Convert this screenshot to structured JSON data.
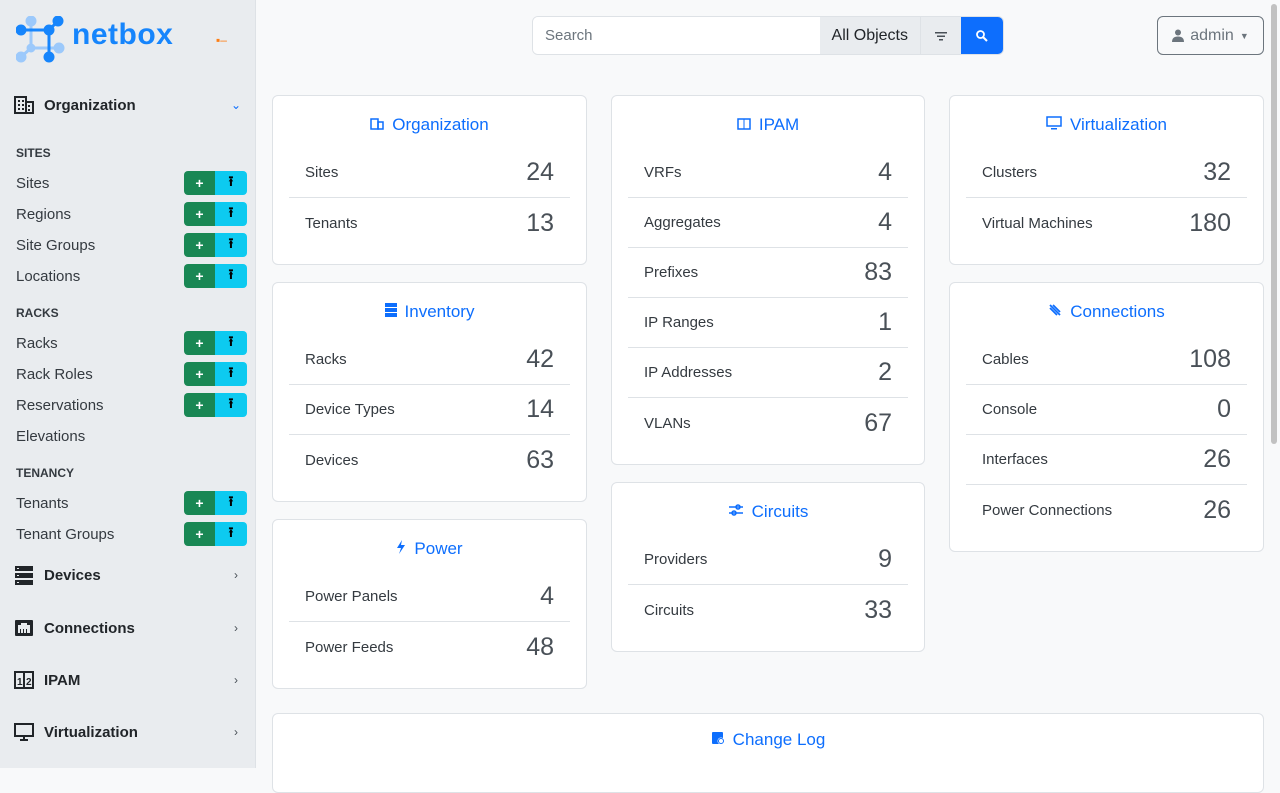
{
  "brand": {
    "name": "netbox"
  },
  "sidebar": {
    "groups": [
      {
        "label": "Organization",
        "icon": "office-building-icon",
        "expanded": true
      },
      {
        "label": "Devices",
        "icon": "server-icon"
      },
      {
        "label": "Connections",
        "icon": "ethernet-icon"
      },
      {
        "label": "IPAM",
        "icon": "counter-icon"
      },
      {
        "label": "Virtualization",
        "icon": "monitor-icon"
      }
    ],
    "sections": [
      {
        "title": "SITES",
        "items": [
          {
            "label": "Sites",
            "buttons": true
          },
          {
            "label": "Regions",
            "buttons": true
          },
          {
            "label": "Site Groups",
            "buttons": true
          },
          {
            "label": "Locations",
            "buttons": true
          }
        ]
      },
      {
        "title": "RACKS",
        "items": [
          {
            "label": "Racks",
            "buttons": true
          },
          {
            "label": "Rack Roles",
            "buttons": true
          },
          {
            "label": "Reservations",
            "buttons": true
          },
          {
            "label": "Elevations",
            "buttons": false
          }
        ]
      },
      {
        "title": "TENANCY",
        "items": [
          {
            "label": "Tenants",
            "buttons": true
          },
          {
            "label": "Tenant Groups",
            "buttons": true
          }
        ]
      }
    ]
  },
  "header": {
    "search_placeholder": "Search",
    "search_value": "",
    "scope": "All Objects",
    "user": "admin"
  },
  "cards": {
    "organization": {
      "title": "Organization",
      "rows": [
        {
          "k": "Sites",
          "v": "24"
        },
        {
          "k": "Tenants",
          "v": "13"
        }
      ]
    },
    "inventory": {
      "title": "Inventory",
      "rows": [
        {
          "k": "Racks",
          "v": "42"
        },
        {
          "k": "Device Types",
          "v": "14"
        },
        {
          "k": "Devices",
          "v": "63"
        }
      ]
    },
    "power": {
      "title": "Power",
      "rows": [
        {
          "k": "Power Panels",
          "v": "4"
        },
        {
          "k": "Power Feeds",
          "v": "48"
        }
      ]
    },
    "ipam": {
      "title": "IPAM",
      "rows": [
        {
          "k": "VRFs",
          "v": "4"
        },
        {
          "k": "Aggregates",
          "v": "4"
        },
        {
          "k": "Prefixes",
          "v": "83"
        },
        {
          "k": "IP Ranges",
          "v": "1"
        },
        {
          "k": "IP Addresses",
          "v": "2"
        },
        {
          "k": "VLANs",
          "v": "67"
        }
      ]
    },
    "circuits": {
      "title": "Circuits",
      "rows": [
        {
          "k": "Providers",
          "v": "9"
        },
        {
          "k": "Circuits",
          "v": "33"
        }
      ]
    },
    "virtualization": {
      "title": "Virtualization",
      "rows": [
        {
          "k": "Clusters",
          "v": "32"
        },
        {
          "k": "Virtual Machines",
          "v": "180"
        }
      ]
    },
    "connections": {
      "title": "Connections",
      "rows": [
        {
          "k": "Cables",
          "v": "108"
        },
        {
          "k": "Console",
          "v": "0"
        },
        {
          "k": "Interfaces",
          "v": "26"
        },
        {
          "k": "Power Connections",
          "v": "26"
        }
      ]
    },
    "changelog": {
      "title": "Change Log"
    }
  },
  "colors": {
    "primary": "#0d6efd",
    "add": "#198754",
    "import": "#0dcaf0",
    "brand": "#1685fc"
  }
}
